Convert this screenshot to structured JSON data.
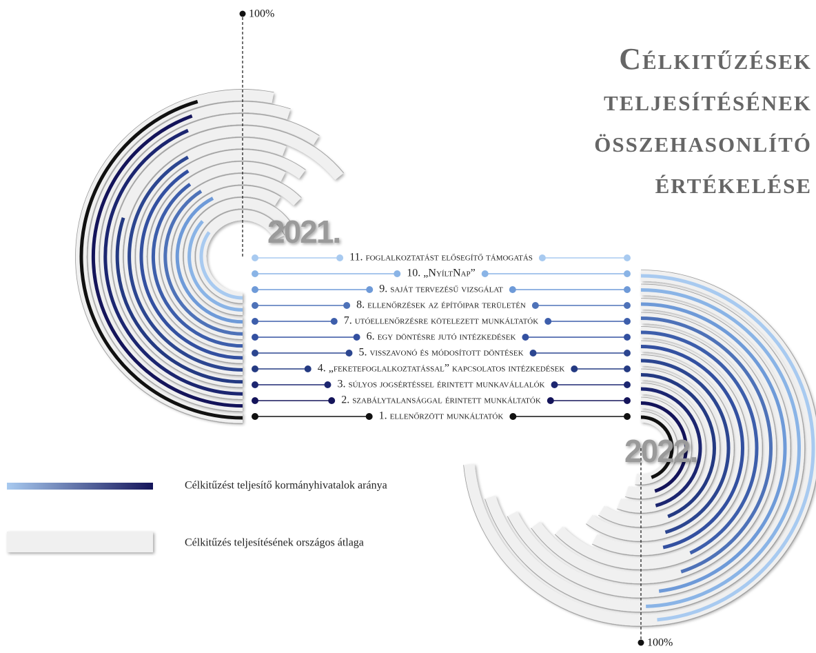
{
  "title": [
    "Célkitűzések",
    "teljesítésének",
    "összehasonlító",
    "értékelése"
  ],
  "categories": [
    "1. ellenőrzött munkáltatók",
    "2. szabálytalansággal érintett munkáltatók",
    "3. súlyos jogsértéssel érintett munkavállalók",
    "4. „feketefoglalkoztatással” kapcsolatos intézkedések",
    "5. visszavonó és módosított döntések",
    "6. egy döntésre jutó intézkedések",
    "7. utóellenőrzésre kötelezett munkáltatók",
    "8. ellenőrzések az építőipar területén",
    "9. saját tervezésű vizsgálat",
    "10. „NyíltNap”",
    "11. foglalkoztatást elősegítő támogatás"
  ],
  "chart_data": [
    {
      "type": "radial_bar",
      "title": "2021.",
      "ticks": [
        {
          "value": 100,
          "label": "100%"
        }
      ],
      "series": [
        {
          "name": "Célkitűzést teljesítő kormányhivatalok aránya",
          "colors": [
            "#111111",
            "#14145a",
            "#1c2670",
            "#243a82",
            "#2c4690",
            "#3350a0",
            "#3d5eab",
            "#4e72b8",
            "#6e9ad8",
            "#8ab4e6",
            "#a8caf0"
          ],
          "values": [
            91,
            89,
            87,
            60,
            84,
            82,
            80,
            82,
            85,
            73,
            70
          ]
        },
        {
          "name": "Célkitűzés teljesítésének országos átlaga",
          "color": "#f0f0f0",
          "values": [
            106,
            110,
            118,
            128,
            112,
            120,
            115,
            125,
            118,
            130,
            135
          ]
        }
      ]
    },
    {
      "type": "radial_bar",
      "title": "2022.",
      "ticks": [
        {
          "value": 100,
          "label": "100%"
        }
      ],
      "series": [
        {
          "name": "Célkitűzést teljesítő kormányhivatalok aránya",
          "colors": [
            "#111111",
            "#14145a",
            "#1c2670",
            "#243a82",
            "#2c4690",
            "#3350a0",
            "#3d5eab",
            "#4e72b8",
            "#6e9ad8",
            "#8ab4e6",
            "#a8caf0"
          ],
          "values": [
            89,
            90,
            92,
            88,
            91,
            93,
            86,
            90,
            96,
            99,
            97
          ]
        },
        {
          "name": "Célkitűzés teljesítésének országos átlaga",
          "color": "#f0f0f0",
          "values": [
            105,
            110,
            112,
            118,
            120,
            115,
            125,
            130,
            135,
            140,
            147
          ]
        }
      ]
    }
  ]
}
